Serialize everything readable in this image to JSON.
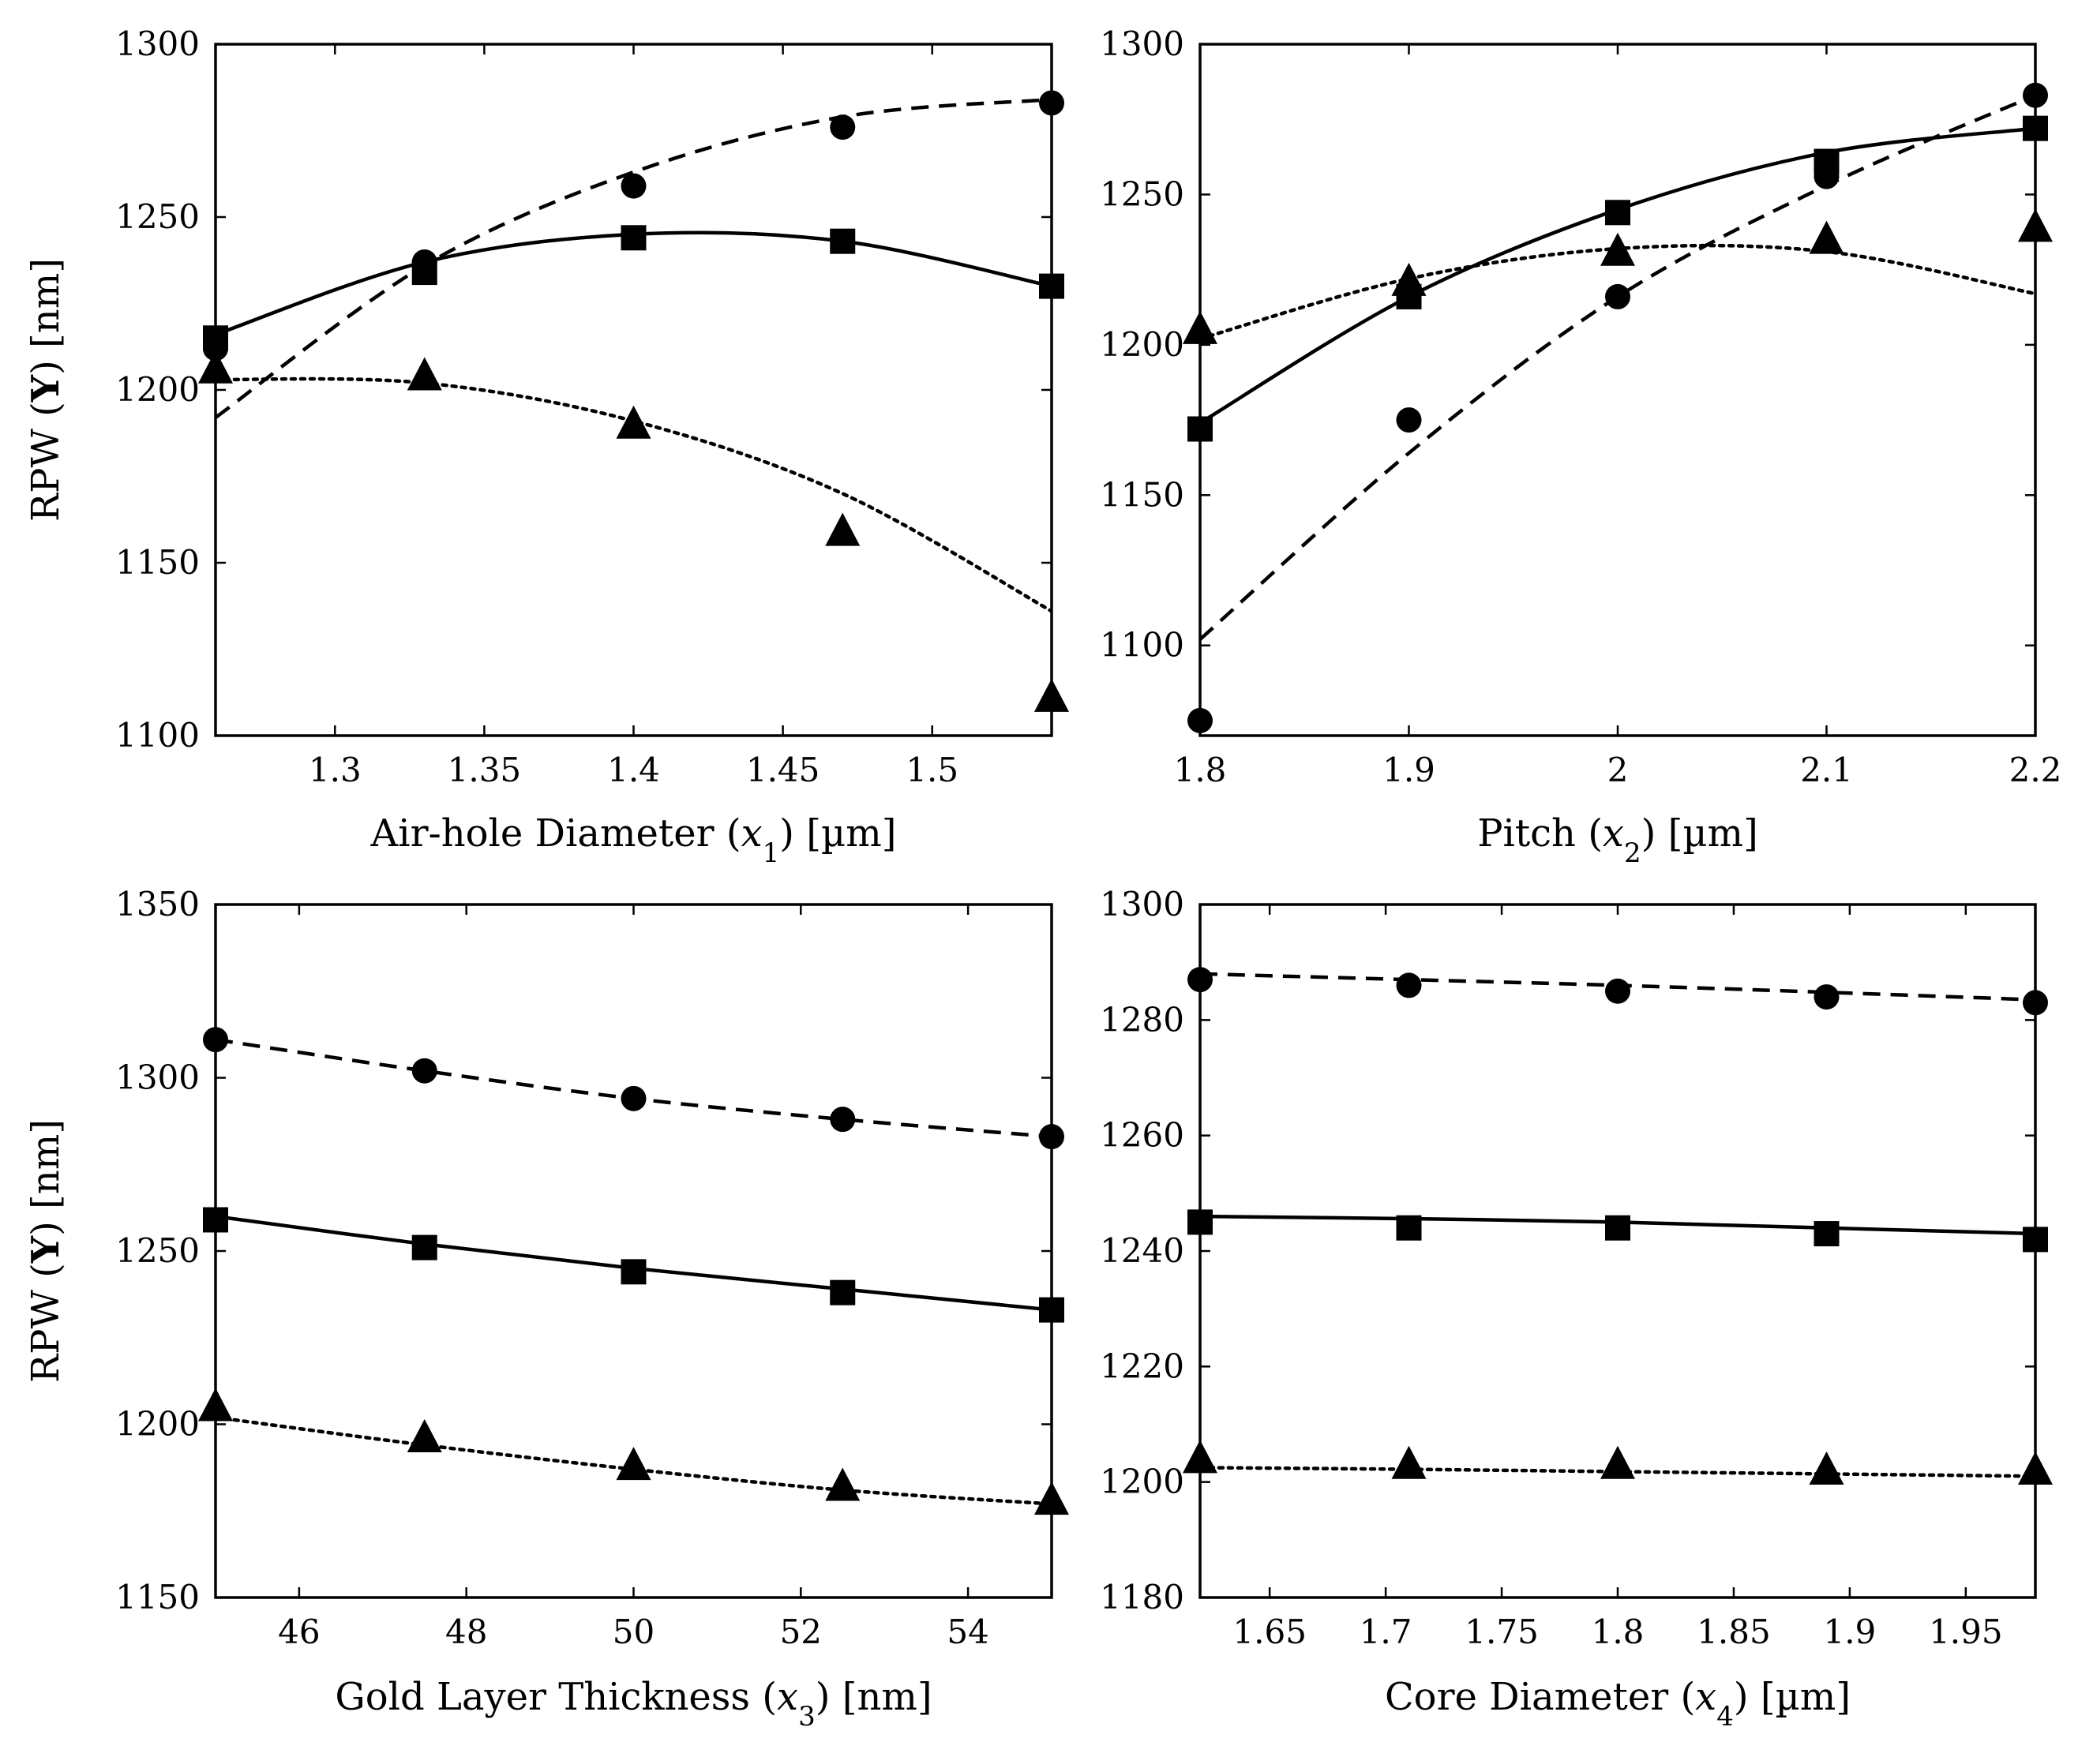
{
  "figure": {
    "ylabel_common": "RPW (Y) [nm]"
  },
  "chart_data": [
    {
      "type": "line",
      "id": "p1",
      "xlabel_prefix": "Air-hole Diameter (",
      "xlabel_var": "x",
      "xlabel_sub": "1",
      "xlabel_suffix": ") [µm]",
      "ylabel_prefix": "RPW (",
      "ylabel_bold": "Y",
      "ylabel_suffix": ") [nm]",
      "xlim": [
        1.26,
        1.54
      ],
      "ylim": [
        1100,
        1300
      ],
      "xticks": [
        1.3,
        1.35,
        1.4,
        1.45,
        1.5
      ],
      "xtick_labels": [
        "1.3",
        "1.35",
        "1.4",
        "1.45",
        "1.5"
      ],
      "yticks": [
        1100,
        1150,
        1200,
        1250,
        1300
      ],
      "ytick_labels": [
        "1100",
        "1150",
        "1200",
        "1250",
        "1300"
      ],
      "series": [
        {
          "name": "circle-series",
          "marker": "circle",
          "line": "dashed",
          "x": [
            1.26,
            1.33,
            1.4,
            1.47,
            1.54
          ],
          "y": [
            1212,
            1237,
            1259,
            1276,
            1283
          ],
          "fit": {
            "x": [
              1.26,
              1.33,
              1.4,
              1.47,
              1.54
            ],
            "y": [
              1192,
              1236,
              1263,
              1279,
              1284
            ]
          }
        },
        {
          "name": "square-series",
          "marker": "square",
          "line": "solid",
          "x": [
            1.26,
            1.33,
            1.4,
            1.47,
            1.54
          ],
          "y": [
            1215,
            1234,
            1244,
            1243,
            1230
          ],
          "fit": {
            "x": [
              1.26,
              1.33,
              1.4,
              1.47,
              1.54
            ],
            "y": [
              1216,
              1237,
              1245,
              1243,
              1230
            ]
          }
        },
        {
          "name": "triangle-series",
          "marker": "triangle",
          "line": "dotted",
          "x": [
            1.26,
            1.33,
            1.4,
            1.47,
            1.54
          ],
          "y": [
            1206,
            1204,
            1190,
            1159,
            1111
          ],
          "fit": {
            "x": [
              1.26,
              1.33,
              1.4,
              1.47,
              1.54
            ],
            "y": [
              1203,
              1202,
              1191,
              1170,
              1136
            ]
          }
        }
      ]
    },
    {
      "type": "line",
      "id": "p2",
      "xlabel_prefix": "Pitch (",
      "xlabel_var": "x",
      "xlabel_sub": "2",
      "xlabel_suffix": ") [µm]",
      "ylabel_prefix": "",
      "ylabel_bold": "",
      "ylabel_suffix": "",
      "xlim": [
        1.8,
        2.2
      ],
      "ylim": [
        1070,
        1300
      ],
      "xticks": [
        1.8,
        1.9,
        2.0,
        2.1,
        2.2
      ],
      "xtick_labels": [
        "1.8",
        "1.9",
        "2",
        "2.1",
        "2.2"
      ],
      "yticks": [
        1100,
        1150,
        1200,
        1250,
        1300
      ],
      "ytick_labels": [
        "1100",
        "1150",
        "1200",
        "1250",
        "1300"
      ],
      "series": [
        {
          "name": "circle-series",
          "marker": "circle",
          "line": "dashed",
          "x": [
            1.8,
            1.9,
            2.0,
            2.1,
            2.2
          ],
          "y": [
            1075,
            1175,
            1216,
            1256,
            1283
          ],
          "fit": {
            "x": [
              1.8,
              1.9,
              2.0,
              2.1,
              2.2
            ],
            "y": [
              1102,
              1164,
              1216,
              1253,
              1283
            ]
          }
        },
        {
          "name": "square-series",
          "marker": "square",
          "line": "solid",
          "x": [
            1.8,
            1.9,
            2.0,
            2.1,
            2.2
          ],
          "y": [
            1172,
            1216,
            1244,
            1261,
            1272
          ],
          "fit": {
            "x": [
              1.8,
              1.9,
              2.0,
              2.1,
              2.2
            ],
            "y": [
              1174,
              1216,
              1245,
              1264,
              1272
            ]
          }
        },
        {
          "name": "triangle-series",
          "marker": "triangle",
          "line": "dotted",
          "x": [
            1.8,
            1.9,
            2.0,
            2.1,
            2.2
          ],
          "y": [
            1205,
            1221,
            1231,
            1235,
            1239
          ],
          "fit": {
            "x": [
              1.8,
              1.9,
              2.0,
              2.1,
              2.2
            ],
            "y": [
              1202,
              1222,
              1232,
              1231,
              1217
            ]
          }
        }
      ]
    },
    {
      "type": "line",
      "id": "p3",
      "xlabel_prefix": "Gold Layer Thickness (",
      "xlabel_var": "x",
      "xlabel_sub": "3",
      "xlabel_suffix": ") [nm]",
      "ylabel_prefix": "RPW (",
      "ylabel_bold": "Y",
      "ylabel_suffix": ") [nm]",
      "xlim": [
        45,
        55
      ],
      "ylim": [
        1150,
        1350
      ],
      "xticks": [
        46,
        48,
        50,
        52,
        54
      ],
      "xtick_labels": [
        "46",
        "48",
        "50",
        "52",
        "54"
      ],
      "yticks": [
        1150,
        1200,
        1250,
        1300,
        1350
      ],
      "ytick_labels": [
        "1150",
        "1200",
        "1250",
        "1300",
        "1350"
      ],
      "series": [
        {
          "name": "circle-series",
          "marker": "circle",
          "line": "dashed",
          "x": [
            45,
            47.5,
            50,
            52.5,
            55
          ],
          "y": [
            1311,
            1302,
            1294,
            1288,
            1283
          ],
          "fit": {
            "x": [
              45,
              47.5,
              50,
              52.5,
              55
            ],
            "y": [
              1311,
              1302,
              1294,
              1288,
              1283
            ]
          }
        },
        {
          "name": "square-series",
          "marker": "square",
          "line": "solid",
          "x": [
            45,
            47.5,
            50,
            52.5,
            55
          ],
          "y": [
            1259,
            1251,
            1244,
            1238,
            1233
          ],
          "fit": {
            "x": [
              45,
              47.5,
              50,
              52.5,
              55
            ],
            "y": [
              1260,
              1252,
              1245,
              1239,
              1233
            ]
          }
        },
        {
          "name": "triangle-series",
          "marker": "triangle",
          "line": "dotted",
          "x": [
            45,
            47.5,
            50,
            52.5,
            55
          ],
          "y": [
            1205,
            1196,
            1188,
            1182,
            1178
          ],
          "fit": {
            "x": [
              45,
              47.5,
              50,
              52.5,
              55
            ],
            "y": [
              1202,
              1194,
              1187,
              1181,
              1177
            ]
          }
        }
      ]
    },
    {
      "type": "line",
      "id": "p4",
      "xlabel_prefix": "Core Diameter (",
      "xlabel_var": "x",
      "xlabel_sub": "4",
      "xlabel_suffix": ") [µm]",
      "ylabel_prefix": "",
      "ylabel_bold": "",
      "ylabel_suffix": "",
      "xlim": [
        1.62,
        1.98
      ],
      "ylim": [
        1180,
        1300
      ],
      "xticks": [
        1.65,
        1.7,
        1.75,
        1.8,
        1.85,
        1.9,
        1.95
      ],
      "xtick_labels": [
        "1.65",
        "1.7",
        "1.75",
        "1.8",
        "1.85",
        "1.9",
        "1.95"
      ],
      "yticks": [
        1180,
        1200,
        1220,
        1240,
        1260,
        1280,
        1300
      ],
      "ytick_labels": [
        "1180",
        "1200",
        "1220",
        "1240",
        "1260",
        "1280",
        "1300"
      ],
      "series": [
        {
          "name": "circle-series",
          "marker": "circle",
          "line": "dashed",
          "x": [
            1.62,
            1.71,
            1.8,
            1.89,
            1.98
          ],
          "y": [
            1287,
            1286,
            1285,
            1284,
            1283
          ],
          "fit": {
            "x": [
              1.62,
              1.71,
              1.8,
              1.89,
              1.98
            ],
            "y": [
              1288,
              1287,
              1286,
              1284.8,
              1283.5
            ]
          }
        },
        {
          "name": "square-series",
          "marker": "square",
          "line": "solid",
          "x": [
            1.62,
            1.71,
            1.8,
            1.89,
            1.98
          ],
          "y": [
            1245,
            1244,
            1244,
            1243,
            1242
          ],
          "fit": {
            "x": [
              1.62,
              1.71,
              1.8,
              1.89,
              1.98
            ],
            "y": [
              1246,
              1245.6,
              1245,
              1244,
              1243
            ]
          }
        },
        {
          "name": "triangle-series",
          "marker": "triangle",
          "line": "dotted",
          "x": [
            1.62,
            1.71,
            1.8,
            1.89,
            1.98
          ],
          "y": [
            1204,
            1203,
            1203,
            1202,
            1202
          ],
          "fit": {
            "x": [
              1.62,
              1.71,
              1.8,
              1.89,
              1.98
            ],
            "y": [
              1202.5,
              1202.2,
              1201.8,
              1201.4,
              1201
            ]
          }
        }
      ]
    }
  ]
}
